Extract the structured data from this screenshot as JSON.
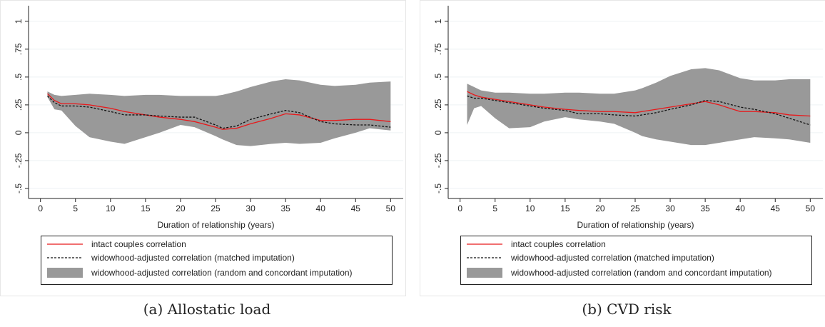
{
  "chart_data": [
    {
      "type": "line",
      "caption": "(a) Allostatic load",
      "xlabel": "Duration of relationship (years)",
      "x": [
        1,
        2,
        3,
        5,
        7,
        10,
        12,
        15,
        17,
        20,
        22,
        25,
        26,
        28,
        30,
        33,
        35,
        37,
        40,
        42,
        45,
        47,
        50
      ],
      "series": [
        {
          "name": "intact couples correlation",
          "color": "#e8191b",
          "line_style": "solid",
          "values": [
            0.35,
            0.29,
            0.26,
            0.26,
            0.25,
            0.22,
            0.19,
            0.16,
            0.14,
            0.12,
            0.1,
            0.05,
            0.03,
            0.04,
            0.08,
            0.13,
            0.17,
            0.16,
            0.11,
            0.11,
            0.12,
            0.12,
            0.1
          ]
        },
        {
          "name": "widowhood-adjusted correlation (matched imputation)",
          "color": "#111111",
          "line_style": "dashed",
          "values": [
            0.33,
            0.27,
            0.24,
            0.24,
            0.23,
            0.19,
            0.16,
            0.16,
            0.15,
            0.14,
            0.14,
            0.07,
            0.04,
            0.06,
            0.12,
            0.17,
            0.2,
            0.18,
            0.1,
            0.08,
            0.07,
            0.07,
            0.05
          ]
        }
      ],
      "band": {
        "name": "widowhood-adjusted correlation (random and concordant imputation)",
        "color": "#999999",
        "upper": [
          0.37,
          0.34,
          0.33,
          0.34,
          0.35,
          0.34,
          0.33,
          0.34,
          0.34,
          0.33,
          0.33,
          0.33,
          0.34,
          0.37,
          0.41,
          0.46,
          0.48,
          0.47,
          0.43,
          0.42,
          0.43,
          0.45,
          0.46
        ],
        "lower": [
          0.32,
          0.21,
          0.2,
          0.06,
          -0.04,
          -0.08,
          -0.1,
          -0.04,
          0.0,
          0.07,
          0.05,
          -0.03,
          -0.06,
          -0.11,
          -0.12,
          -0.1,
          -0.09,
          -0.1,
          -0.09,
          -0.05,
          0.0,
          0.04,
          0.02
        ]
      },
      "xlim": [
        -1.7,
        51.8
      ],
      "xticks": [
        0,
        5,
        10,
        15,
        20,
        25,
        30,
        35,
        40,
        45,
        50
      ],
      "ylim": [
        -0.59,
        1.14
      ],
      "yticks": [
        {
          "value": -0.5,
          "label": "-.5"
        },
        {
          "value": -0.25,
          "label": "-.25"
        },
        0,
        {
          "value": 0.25,
          "label": ".25"
        },
        {
          "value": 0.5,
          "label": ".5"
        },
        {
          "value": 0.75,
          "label": ".75"
        },
        1
      ],
      "grid": true
    },
    {
      "type": "line",
      "caption": "(b) CVD risk",
      "xlabel": "Duration of relationship (years)",
      "x": [
        1,
        2,
        3,
        5,
        7,
        10,
        12,
        15,
        17,
        20,
        22,
        25,
        26,
        28,
        30,
        33,
        35,
        37,
        40,
        42,
        45,
        47,
        50
      ],
      "series": [
        {
          "name": "intact couples correlation",
          "color": "#e8191b",
          "line_style": "solid",
          "values": [
            0.37,
            0.34,
            0.32,
            0.3,
            0.28,
            0.25,
            0.23,
            0.21,
            0.2,
            0.19,
            0.19,
            0.18,
            0.19,
            0.21,
            0.23,
            0.26,
            0.28,
            0.25,
            0.19,
            0.19,
            0.18,
            0.16,
            0.15
          ]
        },
        {
          "name": "widowhood-adjusted correlation (matched imputation)",
          "color": "#111111",
          "line_style": "dashed",
          "values": [
            0.33,
            0.31,
            0.31,
            0.29,
            0.27,
            0.24,
            0.22,
            0.2,
            0.17,
            0.17,
            0.16,
            0.15,
            0.16,
            0.18,
            0.21,
            0.25,
            0.29,
            0.28,
            0.23,
            0.21,
            0.17,
            0.13,
            0.07
          ]
        }
      ],
      "band": {
        "name": "widowhood-adjusted correlation (random and concordant imputation)",
        "color": "#999999",
        "upper": [
          0.44,
          0.41,
          0.38,
          0.36,
          0.36,
          0.35,
          0.35,
          0.36,
          0.36,
          0.35,
          0.35,
          0.38,
          0.4,
          0.45,
          0.51,
          0.57,
          0.58,
          0.56,
          0.49,
          0.47,
          0.47,
          0.48,
          0.48
        ],
        "lower": [
          0.07,
          0.22,
          0.24,
          0.13,
          0.04,
          0.05,
          0.1,
          0.14,
          0.12,
          0.1,
          0.08,
          0.0,
          -0.03,
          -0.06,
          -0.08,
          -0.11,
          -0.11,
          -0.09,
          -0.06,
          -0.04,
          -0.05,
          -0.06,
          -0.09
        ]
      },
      "xlim": [
        -1.7,
        51.8
      ],
      "xticks": [
        0,
        5,
        10,
        15,
        20,
        25,
        30,
        35,
        40,
        45,
        50
      ],
      "ylim": [
        -0.59,
        1.14
      ],
      "yticks": [
        {
          "value": -0.5,
          "label": "-.5"
        },
        {
          "value": -0.25,
          "label": "-.25"
        },
        0,
        {
          "value": 0.25,
          "label": ".25"
        },
        {
          "value": 0.5,
          "label": ".5"
        },
        {
          "value": 0.75,
          "label": ".75"
        },
        1
      ],
      "grid": true
    }
  ]
}
